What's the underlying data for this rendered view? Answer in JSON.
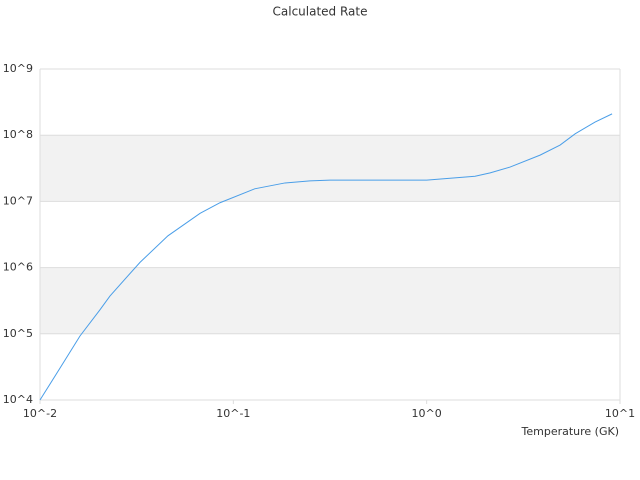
{
  "chart_data": {
    "type": "line",
    "title": "Calculated Rate",
    "xlabel": "Temperature (GK)",
    "x": [
      0.01,
      0.0127,
      0.0161,
      0.0204,
      0.023,
      0.0329,
      0.0459,
      0.0673,
      0.0853,
      0.129,
      0.185,
      0.249,
      0.316,
      1.0,
      1.78,
      2.13,
      2.7,
      3.86,
      4.9,
      5.86,
      7.43,
      9.1
    ],
    "values": [
      10000,
      30400,
      92700,
      229000,
      372000,
      1200000,
      3020000,
      6600000,
      9550000,
      15500000,
      19000000,
      20400000,
      21000000,
      21000000,
      24000000,
      27000000,
      33000000,
      50000000,
      71000000,
      105000000,
      158000000,
      210000000
    ],
    "color": "#4a9ee8",
    "xscale": "log",
    "yscale": "log",
    "xlim": [
      0.01,
      10
    ],
    "ylim": [
      10000,
      1000000000
    ],
    "xticks": [
      {
        "value": 0.01,
        "label": "10^-2"
      },
      {
        "value": 0.1,
        "label": "10^-1"
      },
      {
        "value": 1,
        "label": "10^0"
      },
      {
        "value": 10,
        "label": "10^1"
      }
    ],
    "yticks": [
      {
        "value": 10000,
        "label": "10^4"
      },
      {
        "value": 100000,
        "label": "10^5"
      },
      {
        "value": 1000000,
        "label": "10^6"
      },
      {
        "value": 10000000,
        "label": "10^7"
      },
      {
        "value": 100000000,
        "label": "10^8"
      },
      {
        "value": 1000000000,
        "label": "10^9"
      }
    ],
    "grid": true,
    "band_color": "#f2f2f2"
  }
}
